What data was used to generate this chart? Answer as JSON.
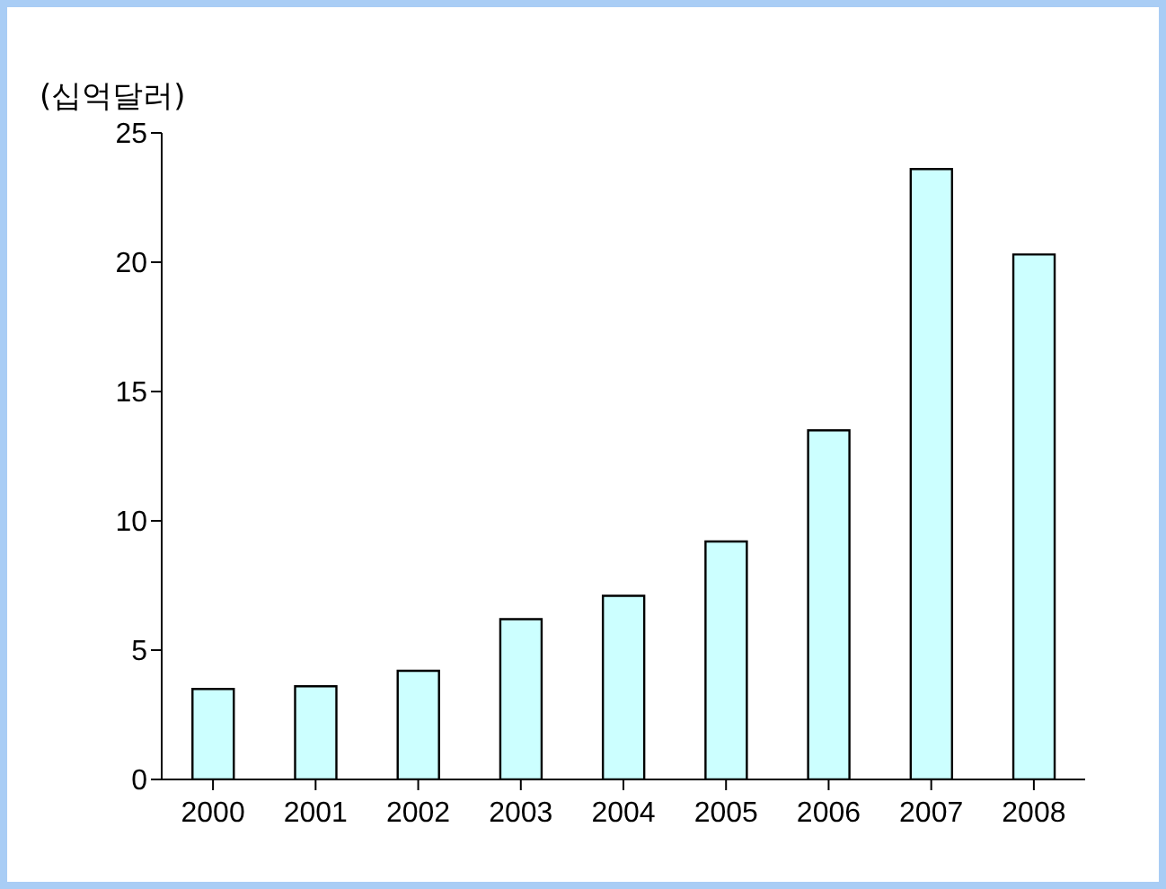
{
  "chart_data": {
    "type": "bar",
    "ylabel": "(십억달러)",
    "categories": [
      "2000",
      "2001",
      "2002",
      "2003",
      "2004",
      "2005",
      "2006",
      "2007",
      "2008"
    ],
    "values": [
      3.5,
      3.6,
      4.2,
      6.2,
      7.1,
      9.2,
      13.5,
      23.6,
      20.3
    ],
    "color": "#ccffff",
    "ylim": [
      0,
      25
    ],
    "yticks": [
      0,
      5,
      10,
      15,
      20,
      25
    ],
    "grid": false
  }
}
